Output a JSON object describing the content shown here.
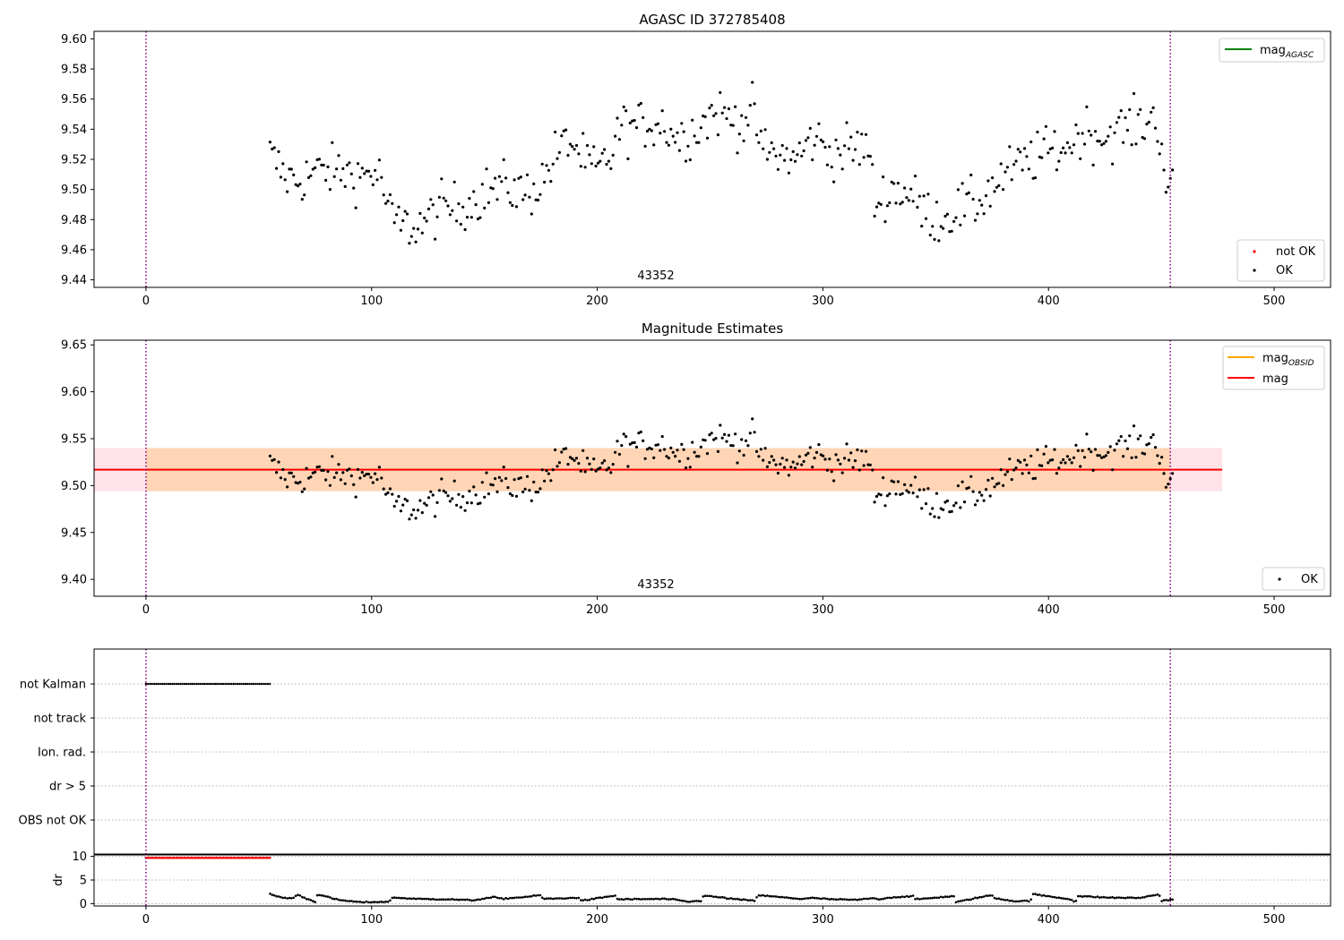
{
  "chart_data": [
    {
      "type": "scatter",
      "title": "AGASC ID 372785408",
      "xlim": [
        -23,
        525
      ],
      "ylim": [
        9.435,
        9.605
      ],
      "xticks": [
        0,
        100,
        200,
        300,
        400,
        500
      ],
      "yticks": [
        9.44,
        9.46,
        9.48,
        9.5,
        9.52,
        9.54,
        9.56,
        9.58,
        9.6
      ],
      "ytick_labels": [
        "9.44",
        "9.46",
        "9.48",
        "9.50",
        "9.52",
        "9.54",
        "9.56",
        "9.58",
        "9.60"
      ],
      "vlines": [
        0,
        454
      ],
      "obsid_label": {
        "text": "43352",
        "x": 227
      },
      "legend_lines": [
        {
          "name": "mag",
          "sub": "AGASC",
          "color": "#008000"
        }
      ],
      "legend_points": [
        {
          "name": "not OK",
          "color": "#ff0000"
        },
        {
          "name": "OK",
          "color": "#000000"
        }
      ],
      "anchors": [
        [
          55,
          9.523
        ],
        [
          62,
          9.508
        ],
        [
          68,
          9.506
        ],
        [
          75,
          9.512
        ],
        [
          80,
          9.512
        ],
        [
          88,
          9.512
        ],
        [
          95,
          9.509
        ],
        [
          100,
          9.512
        ],
        [
          104,
          9.508
        ],
        [
          108,
          9.483
        ],
        [
          112,
          9.477
        ],
        [
          118,
          9.475
        ],
        [
          124,
          9.478
        ],
        [
          130,
          9.488
        ],
        [
          138,
          9.488
        ],
        [
          145,
          9.493
        ],
        [
          152,
          9.5
        ],
        [
          160,
          9.502
        ],
        [
          168,
          9.497
        ],
        [
          175,
          9.504
        ],
        [
          182,
          9.524
        ],
        [
          188,
          9.533
        ],
        [
          195,
          9.517
        ],
        [
          200,
          9.512
        ],
        [
          206,
          9.522
        ],
        [
          210,
          9.541
        ],
        [
          218,
          9.542
        ],
        [
          228,
          9.545
        ],
        [
          236,
          9.534
        ],
        [
          244,
          9.54
        ],
        [
          252,
          9.552
        ],
        [
          258,
          9.548
        ],
        [
          264,
          9.545
        ],
        [
          270,
          9.552
        ],
        [
          272,
          9.527
        ],
        [
          280,
          9.523
        ],
        [
          288,
          9.52
        ],
        [
          296,
          9.535
        ],
        [
          304,
          9.524
        ],
        [
          312,
          9.527
        ],
        [
          320,
          9.528
        ],
        [
          323,
          9.49
        ],
        [
          330,
          9.5
        ],
        [
          338,
          9.498
        ],
        [
          345,
          9.485
        ],
        [
          352,
          9.48
        ],
        [
          360,
          9.487
        ],
        [
          368,
          9.49
        ],
        [
          376,
          9.503
        ],
        [
          384,
          9.513
        ],
        [
          392,
          9.52
        ],
        [
          400,
          9.525
        ],
        [
          408,
          9.528
        ],
        [
          416,
          9.54
        ],
        [
          424,
          9.534
        ],
        [
          432,
          9.54
        ],
        [
          440,
          9.543
        ],
        [
          448,
          9.548
        ],
        [
          450,
          9.528
        ],
        [
          453,
          9.5
        ],
        [
          455,
          9.502
        ]
      ]
    },
    {
      "type": "scatter",
      "title": "Magnitude Estimates",
      "xlim": [
        -23,
        525
      ],
      "ylim": [
        9.382,
        9.655
      ],
      "xticks": [
        0,
        100,
        200,
        300,
        400,
        500
      ],
      "yticks": [
        9.4,
        9.45,
        9.5,
        9.55,
        9.6,
        9.65
      ],
      "ytick_labels": [
        "9.40",
        "9.45",
        "9.50",
        "9.55",
        "9.60",
        "9.65"
      ],
      "vlines": [
        0,
        454
      ],
      "obsid_label": {
        "text": "43352",
        "x": 227
      },
      "mag_line": {
        "value": 9.517,
        "color": "#ff0000"
      },
      "mag_band": {
        "low": 9.494,
        "high": 9.54,
        "x_end": 477,
        "color": "#ffc0cb"
      },
      "obsid_band": {
        "low": 9.494,
        "high": 9.54,
        "x_start": 0,
        "x_end": 454,
        "color": "#ffa500"
      },
      "legend_lines": [
        {
          "name": "mag",
          "sub": "OBSID",
          "color": "#ffa500"
        },
        {
          "name": "mag",
          "sub": "",
          "color": "#ff0000"
        }
      ],
      "legend_points": [
        {
          "name": "OK",
          "color": "#000000"
        }
      ]
    },
    {
      "type": "scatter",
      "title": "",
      "xlim": [
        -23,
        525
      ],
      "xticks": [
        0,
        100,
        200,
        300,
        400,
        500
      ],
      "flag_categories": [
        "not Kalman",
        "not track",
        "Ion. rad.",
        "dr > 5",
        "OBS not OK"
      ],
      "flag_segments": [
        {
          "category": "not Kalman",
          "x_start": 0,
          "x_end": 55
        }
      ],
      "vlines": [
        0,
        454
      ]
    },
    {
      "type": "scatter",
      "title": "",
      "ylabel": "dr",
      "xlim": [
        -23,
        525
      ],
      "ylim": [
        -0.5,
        10.5
      ],
      "yticks": [
        0,
        5,
        10
      ],
      "ytick_labels": [
        "0",
        "5",
        "10"
      ],
      "xticks": [
        0,
        100,
        200,
        300,
        400,
        500
      ],
      "xtick_labels": [
        "0",
        "100",
        "200",
        "300",
        "400",
        "500"
      ],
      "dr_high": {
        "x_start": 0,
        "x_end": 55,
        "value": 9.7,
        "color": "#ff0000"
      },
      "dr_anchors": [
        [
          55,
          2.0
        ],
        [
          60,
          1.3
        ],
        [
          65,
          1.1
        ],
        [
          67,
          1.9
        ],
        [
          72,
          0.9
        ],
        [
          75,
          0.4
        ],
        [
          76,
          2.0
        ],
        [
          85,
          0.8
        ],
        [
          95,
          0.3
        ],
        [
          108,
          0.4
        ],
        [
          109,
          1.3
        ],
        [
          120,
          1.0
        ],
        [
          135,
          0.9
        ],
        [
          145,
          0.7
        ],
        [
          150,
          1.1
        ],
        [
          155,
          1.4
        ],
        [
          157,
          1.0
        ],
        [
          170,
          1.5
        ],
        [
          175,
          1.8
        ],
        [
          176,
          1.0
        ],
        [
          190,
          1.2
        ],
        [
          192,
          1.3
        ],
        [
          193,
          0.6
        ],
        [
          205,
          1.5
        ],
        [
          208,
          1.7
        ],
        [
          209,
          0.9
        ],
        [
          230,
          1.0
        ],
        [
          235,
          0.8
        ],
        [
          240,
          0.4
        ],
        [
          246,
          0.6
        ],
        [
          247,
          1.7
        ],
        [
          255,
          1.3
        ],
        [
          262,
          0.9
        ],
        [
          270,
          0.6
        ],
        [
          271,
          1.8
        ],
        [
          290,
          1.0
        ],
        [
          295,
          1.2
        ],
        [
          305,
          0.9
        ],
        [
          315,
          0.8
        ],
        [
          323,
          1.2
        ],
        [
          324,
          0.9
        ],
        [
          330,
          1.3
        ],
        [
          340,
          1.6
        ],
        [
          341,
          0.9
        ],
        [
          358,
          1.6
        ],
        [
          359,
          0.3
        ],
        [
          368,
          1.2
        ],
        [
          375,
          1.8
        ],
        [
          376,
          1.2
        ],
        [
          385,
          0.5
        ],
        [
          392,
          0.6
        ],
        [
          393,
          2.0
        ],
        [
          410,
          0.9
        ],
        [
          412,
          0.3
        ],
        [
          413,
          1.6
        ],
        [
          425,
          1.3
        ],
        [
          440,
          1.2
        ],
        [
          445,
          1.6
        ],
        [
          449,
          2.0
        ],
        [
          450,
          0.6
        ],
        [
          455,
          0.9
        ]
      ],
      "vlines": [
        0,
        454
      ]
    }
  ],
  "colors": {
    "vline": "#800080",
    "axis": "#000000",
    "grid": "#b0b0b0",
    "points": "#000000"
  }
}
